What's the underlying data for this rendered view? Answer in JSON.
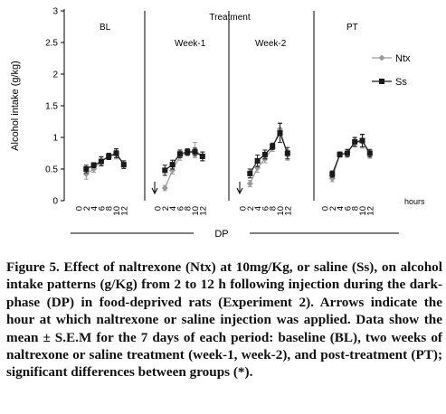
{
  "chart_data": {
    "type": "line",
    "ylabel": "Alcohol intake (g/kg)",
    "xlabel": "DP",
    "x_unit_label": "hours",
    "ylim": [
      0,
      3
    ],
    "yticks": [
      "0",
      "0.5",
      "1",
      "1.5",
      "2",
      "2.5",
      "3"
    ],
    "x_ticks": [
      "0",
      "2",
      "4",
      "6",
      "8",
      "10",
      "12"
    ],
    "group_title": "Treatment",
    "legend": {
      "position": "right",
      "entries": [
        "Ntx",
        "Ss"
      ]
    },
    "series_colors": {
      "Ntx": "#9a9a9a",
      "Ss": "#1a1a1a"
    },
    "arrow_at_hour": 0,
    "panels": [
      {
        "label": "BL",
        "x": [
          2,
          4,
          6,
          8,
          10,
          12
        ],
        "series": [
          {
            "name": "Ntx",
            "values": [
              0.42,
              0.5,
              0.63,
              0.7,
              0.73,
              0.57
            ],
            "err": [
              0.08,
              0.05,
              0.07,
              0.05,
              0.07,
              0.06
            ]
          },
          {
            "name": "Ss",
            "values": [
              0.5,
              0.56,
              0.62,
              0.7,
              0.75,
              0.57
            ],
            "err": [
              0.06,
              0.04,
              0.07,
              0.05,
              0.07,
              0.06
            ]
          }
        ]
      },
      {
        "label": "Week-1",
        "arrow": true,
        "x": [
          2,
          4,
          6,
          8,
          10,
          12
        ],
        "series": [
          {
            "name": "Ntx",
            "values": [
              0.2,
              0.48,
              0.7,
              0.76,
              0.8,
              0.7
            ],
            "err": [
              0.04,
              0.06,
              0.06,
              0.05,
              0.12,
              0.07
            ]
          },
          {
            "name": "Ss",
            "values": [
              0.48,
              0.57,
              0.74,
              0.77,
              0.77,
              0.7
            ],
            "err": [
              0.08,
              0.07,
              0.06,
              0.05,
              0.06,
              0.07
            ]
          }
        ]
      },
      {
        "label": "Week-2",
        "arrow": true,
        "x": [
          2,
          4,
          6,
          8,
          10,
          12
        ],
        "series": [
          {
            "name": "Ntx",
            "values": [
              0.27,
              0.52,
              0.66,
              0.83,
              1.13,
              0.72
            ],
            "err": [
              0.05,
              0.07,
              0.06,
              0.05,
              0.1,
              0.08
            ]
          },
          {
            "name": "Ss",
            "values": [
              0.43,
              0.63,
              0.73,
              0.86,
              1.07,
              0.75
            ],
            "err": [
              0.07,
              0.09,
              0.07,
              0.05,
              0.15,
              0.09
            ]
          }
        ]
      },
      {
        "label": "PT",
        "x": [
          2,
          4,
          6,
          8,
          10,
          12
        ],
        "series": [
          {
            "name": "Ntx",
            "values": [
              0.35,
              0.73,
              0.76,
              0.92,
              0.93,
              0.73
            ],
            "err": [
              0.05,
              0.04,
              0.05,
              0.07,
              0.1,
              0.06
            ]
          },
          {
            "name": "Ss",
            "values": [
              0.42,
              0.73,
              0.75,
              0.93,
              0.95,
              0.75
            ],
            "err": [
              0.05,
              0.04,
              0.06,
              0.07,
              0.1,
              0.06
            ]
          }
        ]
      }
    ]
  },
  "caption": "Figure 5. Effect of naltrexone (Ntx) at 10mg/Kg, or saline (Ss), on alcohol intake patterns (g/Kg) from 2 to 12 h following injection during the dark-phase (DP) in food-deprived rats (Experiment 2). Arrows indicate the hour at which naltrexone or saline injection was applied. Data show the mean ± S.E.M for the 7 days of each period: baseline (BL), two weeks of naltrexone or saline treatment (week-1, week-2), and post-treatment (PT); significant differences between groups (*)."
}
